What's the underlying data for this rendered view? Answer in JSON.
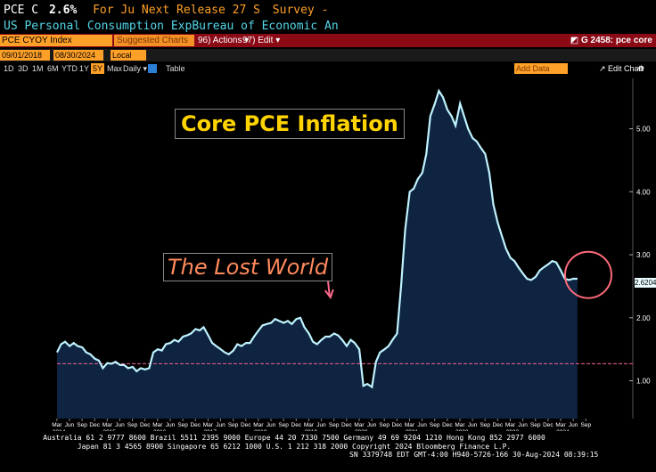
{
  "header": {
    "ticker": "PCE C",
    "value": "2.6%",
    "period": "For Ju",
    "next_release": "Next Release 27 S",
    "survey": "Survey -",
    "line2a": "US Personal Consumption Exp",
    "line2b": "Bureau of Economic An"
  },
  "toolbar": {
    "ticker_input": "PCE CYOY Index",
    "suggested": "Suggested Charts",
    "actions": "96) Actions ▾",
    "edit": "97) Edit ▾",
    "chart_id": "G 2458: pce core"
  },
  "controls": {
    "start_date": "09/01/2018",
    "end_date": "08/30/2024",
    "currency": "Local CCY",
    "ranges": [
      "1D",
      "3D",
      "1M",
      "6M",
      "YTD",
      "1Y",
      "5Y",
      "Max"
    ],
    "selected_range": "5Y",
    "frequency": "Daily ▾",
    "table": "Table",
    "add_data": "Add Data",
    "edit_chart": "↗ Edit Chart"
  },
  "annotations": {
    "title": "Core PCE Inflation",
    "lost": "The Lost World",
    "last_value": "2.6204"
  },
  "colors": {
    "line": "#bff3ff",
    "area": "#0e2440",
    "ref_line": "#d85a8a",
    "circle": "#ff6a7a",
    "arrow": "#ff6a8a",
    "axis_text": "#ffffff"
  },
  "chart_data": {
    "type": "area",
    "title": "",
    "xlabel": "",
    "ylabel": "",
    "ylim": [
      0.4,
      5.8
    ],
    "xlim": [
      2014.17,
      2024.75
    ],
    "y_ticks": [
      1.0,
      2.0,
      3.0,
      4.0,
      5.0
    ],
    "y_tick_labels": [
      "1.00",
      "2.00",
      "3.00",
      "4.00",
      "5.00"
    ],
    "month_ticks": [
      "Mar",
      "Jun",
      "Sep",
      "Dec"
    ],
    "years": [
      "2014",
      "2015",
      "2016",
      "2017",
      "2018",
      "2019",
      "2020",
      "2021",
      "2022",
      "2023",
      "2024"
    ],
    "reference_line": 1.27,
    "series": [
      {
        "x": [
          2014.17,
          2014.25,
          2014.33,
          2014.42,
          2014.5,
          2014.58,
          2014.67,
          2014.75,
          2014.83,
          2014.92,
          2015.0,
          2015.08,
          2015.17,
          2015.25,
          2015.33,
          2015.42,
          2015.5,
          2015.58,
          2015.67,
          2015.75,
          2015.83,
          2015.92,
          2016.0,
          2016.08,
          2016.17,
          2016.25,
          2016.33,
          2016.42,
          2016.5,
          2016.58,
          2016.67,
          2016.75,
          2016.83,
          2016.92,
          2017.0,
          2017.08,
          2017.17,
          2017.25,
          2017.33,
          2017.42,
          2017.5,
          2017.58,
          2017.67,
          2017.75,
          2017.83,
          2017.92,
          2018.0,
          2018.08,
          2018.17,
          2018.25,
          2018.33,
          2018.42,
          2018.5,
          2018.58,
          2018.67,
          2018.75,
          2018.83,
          2018.92,
          2019.0,
          2019.08,
          2019.17,
          2019.25,
          2019.33,
          2019.42,
          2019.5,
          2019.58,
          2019.67,
          2019.75,
          2019.83,
          2019.92,
          2020.0,
          2020.08,
          2020.17,
          2020.25,
          2020.33,
          2020.42,
          2020.5,
          2020.58,
          2020.67,
          2020.75,
          2020.83,
          2020.92,
          2021.0,
          2021.08,
          2021.17,
          2021.25,
          2021.33,
          2021.42,
          2021.5,
          2021.58,
          2021.67,
          2021.75,
          2021.83,
          2021.92,
          2022.0,
          2022.08,
          2022.17,
          2022.25,
          2022.33,
          2022.42,
          2022.5,
          2022.58,
          2022.67,
          2022.75,
          2022.83,
          2022.92,
          2023.0,
          2023.08,
          2023.17,
          2023.25,
          2023.33,
          2023.42,
          2023.5,
          2023.58,
          2023.67,
          2023.75,
          2023.83,
          2023.92,
          2024.0,
          2024.08,
          2024.17,
          2024.25,
          2024.33,
          2024.42,
          2024.5
        ],
        "y": [
          1.45,
          1.58,
          1.62,
          1.55,
          1.6,
          1.55,
          1.53,
          1.45,
          1.42,
          1.35,
          1.32,
          1.2,
          1.28,
          1.27,
          1.3,
          1.25,
          1.25,
          1.2,
          1.22,
          1.15,
          1.2,
          1.18,
          1.2,
          1.45,
          1.5,
          1.48,
          1.58,
          1.6,
          1.65,
          1.62,
          1.7,
          1.72,
          1.75,
          1.82,
          1.8,
          1.85,
          1.72,
          1.6,
          1.55,
          1.5,
          1.45,
          1.42,
          1.48,
          1.58,
          1.55,
          1.6,
          1.6,
          1.7,
          1.8,
          1.88,
          1.9,
          1.92,
          1.98,
          1.95,
          1.92,
          1.95,
          1.9,
          1.98,
          2.0,
          1.85,
          1.75,
          1.62,
          1.58,
          1.65,
          1.7,
          1.7,
          1.75,
          1.72,
          1.65,
          1.55,
          1.65,
          1.6,
          1.5,
          0.92,
          0.95,
          0.9,
          1.3,
          1.45,
          1.5,
          1.55,
          1.65,
          1.75,
          2.5,
          3.4,
          4.0,
          4.05,
          4.2,
          4.3,
          4.6,
          5.2,
          5.4,
          5.6,
          5.5,
          5.3,
          5.2,
          5.05,
          5.4,
          5.2,
          5.0,
          4.85,
          4.8,
          4.7,
          4.6,
          4.3,
          3.8,
          3.5,
          3.3,
          3.1,
          2.95,
          2.9,
          2.8,
          2.7,
          2.62,
          2.6,
          2.65,
          2.75,
          2.8,
          2.85,
          2.9,
          2.88,
          2.75,
          2.62,
          2.6,
          2.62,
          2.62
        ]
      }
    ]
  },
  "footer": {
    "line1": "Australia 61 2 9777 8600 Brazil 5511 2395 9000 Europe 44 20 7330 7500 Germany 49 69 9204 1210 Hong Kong 852 2977 6000",
    "line2": "Japan 81 3 4565 8900       Singapore 65 6212 1000       U.S. 1 212 318 2000          Copyright 2024 Bloomberg Finance L.P.",
    "line3": "SN 3379748 EDT  GMT-4:00 H940-5726-166 30-Aug-2024 08:39:15"
  }
}
